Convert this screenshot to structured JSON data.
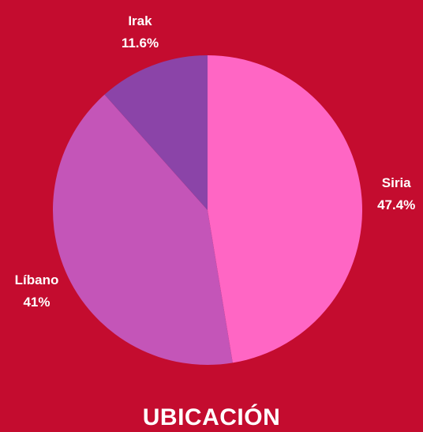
{
  "chart_data": {
    "type": "pie",
    "title": "UBICACIÓN",
    "categories": [
      "Siria",
      "Líbano",
      "Irak"
    ],
    "values": [
      47.4,
      41,
      11.6
    ],
    "value_labels": [
      "47.4%",
      "41%",
      "11.6%"
    ],
    "colors": [
      "#ff66c4",
      "#c455b8",
      "#8b44a8"
    ]
  }
}
